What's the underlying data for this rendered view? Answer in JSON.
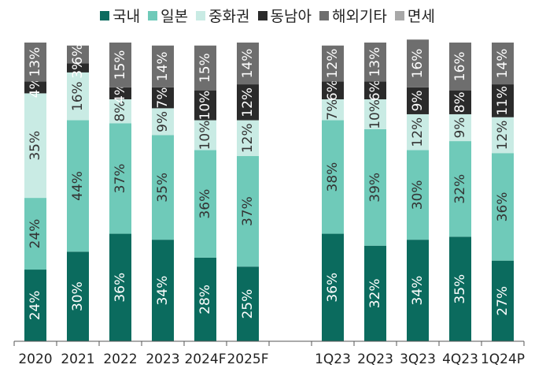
{
  "chart_data": {
    "type": "bar",
    "stacked": true,
    "normalized": true,
    "categories": [
      "2020",
      "2021",
      "2022",
      "2023",
      "2024F",
      "2025F",
      "",
      "1Q23",
      "2Q23",
      "3Q23",
      "4Q23",
      "1Q24P"
    ],
    "series": [
      {
        "name": "국내",
        "color": "#0b6b5e",
        "values": [
          24,
          30,
          36,
          34,
          28,
          25,
          null,
          36,
          32,
          34,
          35,
          27
        ],
        "labels": [
          "24%",
          "30%",
          "36%",
          "34%",
          "28%",
          "25%",
          "",
          "36%",
          "32%",
          "34%",
          "35%",
          "27%"
        ]
      },
      {
        "name": "일본",
        "color": "#6fcab9",
        "values": [
          24,
          44,
          37,
          35,
          36,
          37,
          null,
          38,
          39,
          30,
          32,
          36
        ],
        "labels": [
          "24%",
          "44%",
          "37%",
          "35%",
          "36%",
          "37%",
          "",
          "38%",
          "39%",
          "30%",
          "32%",
          "36%"
        ]
      },
      {
        "name": "중화권",
        "color": "#c9ebe4",
        "values": [
          35,
          16,
          8,
          9,
          10,
          12,
          null,
          7,
          10,
          12,
          9,
          12
        ],
        "labels": [
          "35%",
          "16%",
          "8%",
          "9%",
          "10%",
          "12%",
          "",
          "7%",
          "10%",
          "12%",
          "9%",
          "12%"
        ]
      },
      {
        "name": "동남아",
        "color": "#2b2b2b",
        "values": [
          4,
          3,
          4,
          7,
          10,
          12,
          null,
          6,
          6,
          9,
          8,
          11
        ],
        "labels": [
          "4%",
          "3%",
          "4%",
          "7%",
          "10%",
          "12%",
          "",
          "6%",
          "6%",
          "9%",
          "8%",
          "11%"
        ]
      },
      {
        "name": "해외기타",
        "color": "#6e6e6e",
        "values": [
          13,
          6,
          15,
          14,
          15,
          14,
          null,
          12,
          13,
          16,
          16,
          14
        ],
        "labels": [
          "13%",
          "6%",
          "15%",
          "14%",
          "15%",
          "14%",
          "",
          "12%",
          "13%",
          "16%",
          "16%",
          "14%"
        ]
      },
      {
        "name": "면세",
        "color": "#a8a8a8",
        "values": [
          0,
          0,
          0,
          0,
          0,
          0,
          null,
          0,
          0,
          0,
          0,
          0
        ],
        "labels": [
          "",
          "",
          "",
          "",
          "",
          "",
          "",
          "",
          "",
          "",
          "",
          ""
        ]
      }
    ],
    "ylim": [
      0,
      100
    ],
    "xlabel": "",
    "ylabel": "",
    "grid": false,
    "legend_position": "top"
  }
}
